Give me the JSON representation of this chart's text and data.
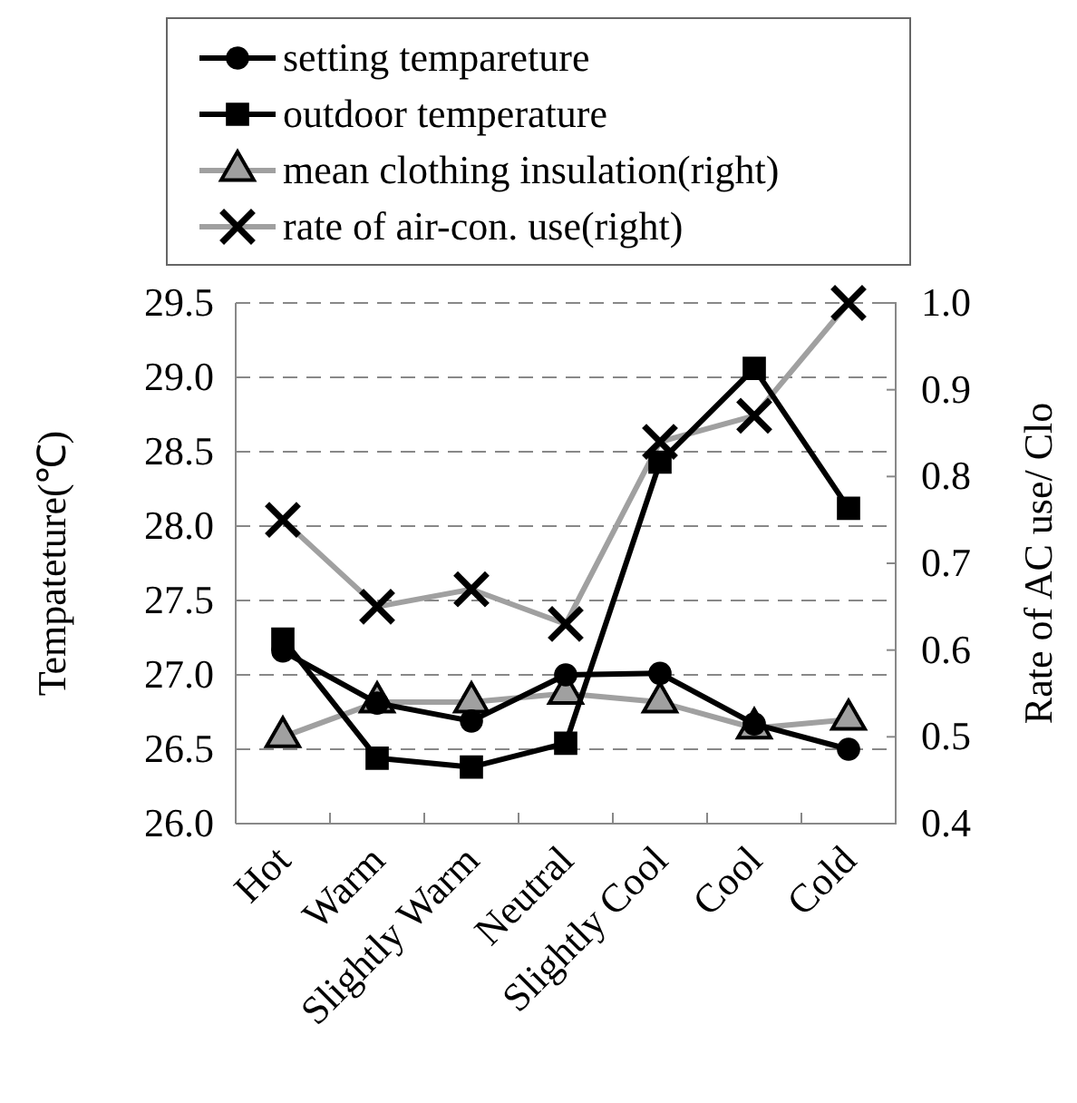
{
  "chart_data": {
    "type": "line",
    "ylabel": "Tempateture(℃)",
    "y2label": "Rate of AC use/ Clo",
    "categories": [
      "Hot",
      "Warm",
      "Slightly Warm",
      "Neutral",
      "Slightly Cool",
      "Cool",
      "Cold"
    ],
    "series": [
      {
        "name": "setting tempareture",
        "color": "#000000",
        "marker": "circle",
        "values": [
          27.16,
          26.81,
          26.69,
          27.0,
          27.01,
          26.67,
          26.5
        ]
      },
      {
        "name": "outdoor temperature",
        "color": "#000000",
        "marker": "square",
        "values": [
          27.24,
          26.44,
          26.38,
          26.54,
          28.43,
          29.06,
          28.12
        ]
      },
      {
        "name": "mean clothing insulation(right)",
        "color": "#a0a0a0",
        "marker": "triangle",
        "axis": "y2",
        "values": [
          0.5,
          0.54,
          0.54,
          0.55,
          0.54,
          0.51,
          0.52
        ]
      },
      {
        "name": "rate of air-con. use(right)",
        "color": "#a0a0a0",
        "marker": "cross",
        "axis": "y2",
        "values": [
          0.75,
          0.65,
          0.67,
          0.63,
          0.84,
          0.87,
          1.0
        ]
      }
    ],
    "ylim": [
      26,
      29.5
    ],
    "yticks": [
      {
        "value": 26,
        "label": "26.0"
      },
      {
        "value": 26.5,
        "label": "26.5"
      },
      {
        "value": 27,
        "label": "27.0"
      },
      {
        "value": 27.5,
        "label": "27.5"
      },
      {
        "value": 28,
        "label": "28.0"
      },
      {
        "value": 28.5,
        "label": "28.5"
      },
      {
        "value": 29,
        "label": "29.0"
      },
      {
        "value": 29.5,
        "label": "29.5"
      }
    ],
    "y2lim": [
      0.4,
      1.0
    ],
    "y2ticks": [
      {
        "value": 0.4,
        "label": "0.4"
      },
      {
        "value": 0.5,
        "label": "0.5"
      },
      {
        "value": 0.6,
        "label": "0.6"
      },
      {
        "value": 0.7,
        "label": "0.7"
      },
      {
        "value": 0.8,
        "label": "0.8"
      },
      {
        "value": 0.9,
        "label": "0.9"
      },
      {
        "value": 1.0,
        "label": "1.0"
      }
    ],
    "grid": "y",
    "legend": "top",
    "line_style": "solid"
  }
}
